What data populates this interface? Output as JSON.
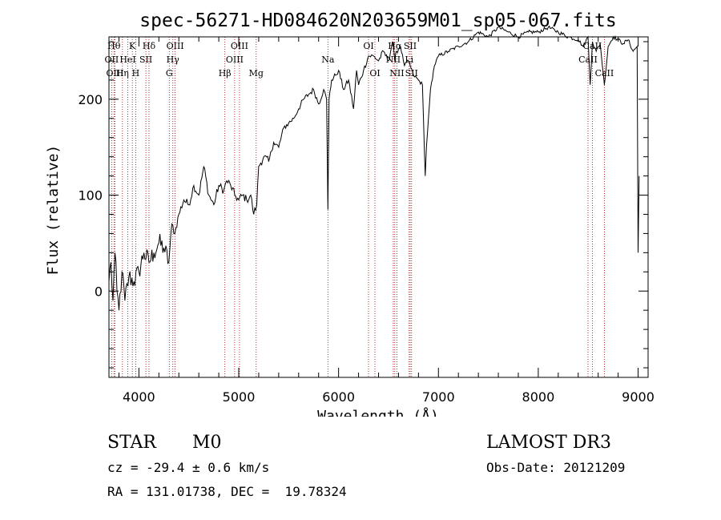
{
  "chart_data": {
    "type": "line",
    "title": "spec-56271-HD084620N203659M01_sp05-067.fits",
    "xlabel": "Wavelength (Å)",
    "ylabel": "Flux (relative)",
    "xlim": [
      3700,
      9100
    ],
    "ylim": [
      -90,
      265
    ],
    "xticks": [
      4000,
      5000,
      6000,
      7000,
      8000,
      9000
    ],
    "yticks": [
      0,
      100,
      200
    ],
    "series": [
      {
        "name": "spectrum",
        "x": [
          3700,
          3720,
          3740,
          3760,
          3780,
          3800,
          3830,
          3860,
          3900,
          3950,
          4000,
          4050,
          4100,
          4150,
          4200,
          4250,
          4300,
          4330,
          4360,
          4400,
          4450,
          4500,
          4550,
          4600,
          4650,
          4700,
          4750,
          4800,
          4850,
          4880,
          4920,
          4960,
          5000,
          5040,
          5080,
          5120,
          5150,
          5180,
          5200,
          5250,
          5300,
          5350,
          5400,
          5450,
          5500,
          5550,
          5600,
          5650,
          5700,
          5750,
          5800,
          5850,
          5880,
          5893,
          5905,
          5930,
          5970,
          6000,
          6050,
          6100,
          6150,
          6180,
          6200,
          6250,
          6300,
          6350,
          6400,
          6450,
          6500,
          6540,
          6563,
          6580,
          6620,
          6660,
          6700,
          6750,
          6800,
          6840,
          6860,
          6868,
          6880,
          6920,
          6960,
          7000,
          7100,
          7200,
          7300,
          7400,
          7500,
          7600,
          7700,
          7800,
          7900,
          8000,
          8100,
          8200,
          8300,
          8400,
          8450,
          8498,
          8520,
          8542,
          8580,
          8620,
          8662,
          8700,
          8750,
          8800,
          8850,
          8900,
          8950,
          8990,
          9000,
          9010
        ],
        "y": [
          10,
          30,
          -10,
          40,
          0,
          -20,
          20,
          -10,
          15,
          10,
          20,
          40,
          30,
          40,
          50,
          45,
          30,
          70,
          60,
          80,
          95,
          90,
          110,
          100,
          130,
          100,
          90,
          110,
          105,
          115,
          110,
          100,
          95,
          100,
          95,
          100,
          80,
          90,
          130,
          140,
          135,
          155,
          150,
          170,
          175,
          180,
          190,
          200,
          205,
          210,
          195,
          210,
          200,
          85,
          200,
          220,
          225,
          230,
          210,
          220,
          190,
          230,
          215,
          230,
          245,
          245,
          240,
          250,
          240,
          260,
          240,
          250,
          255,
          235,
          240,
          225,
          220,
          215,
          145,
          120,
          150,
          210,
          235,
          245,
          250,
          255,
          260,
          270,
          265,
          275,
          270,
          265,
          270,
          270,
          275,
          270,
          265,
          262,
          255,
          265,
          215,
          260,
          250,
          258,
          215,
          255,
          265,
          262,
          258,
          262,
          250,
          255,
          40,
          120
        ]
      }
    ],
    "lines": [
      {
        "x": 3750,
        "label": "Hθ",
        "row": 1
      },
      {
        "x": 3727,
        "label": "OII",
        "row": 2
      },
      {
        "x": 3760,
        "label": "OIII",
        "row": 3
      },
      {
        "x": 3835,
        "label": "Hη",
        "row": 3
      },
      {
        "x": 3889,
        "label": "HeI",
        "row": 2
      },
      {
        "x": 3934,
        "label": "K",
        "row": 1
      },
      {
        "x": 3968,
        "label": "H",
        "row": 3
      },
      {
        "x": 4070,
        "label": "SII",
        "row": 2
      },
      {
        "x": 4101,
        "label": "Hδ",
        "row": 1
      },
      {
        "x": 4304,
        "label": "G",
        "row": 3
      },
      {
        "x": 4340,
        "label": "Hγ",
        "row": 2
      },
      {
        "x": 4363,
        "label": "OIII",
        "row": 1
      },
      {
        "x": 4861,
        "label": "Hβ",
        "row": 3
      },
      {
        "x": 4959,
        "label": "OIII",
        "row": 2
      },
      {
        "x": 5007,
        "label": "OIII",
        "row": 1
      },
      {
        "x": 5175,
        "label": "Mg",
        "row": 3
      },
      {
        "x": 5893,
        "label": "Na",
        "row": 2
      },
      {
        "x": 6300,
        "label": "OI",
        "row": 1
      },
      {
        "x": 6364,
        "label": "OI",
        "row": 3
      },
      {
        "x": 6548,
        "label": "NII",
        "row": 2
      },
      {
        "x": 6563,
        "label": "Hα",
        "row": 1
      },
      {
        "x": 6584,
        "label": "NII",
        "row": 3
      },
      {
        "x": 6707,
        "label": "Li",
        "row": 2
      },
      {
        "x": 6717,
        "label": "SII",
        "row": 1
      },
      {
        "x": 6731,
        "label": "SII",
        "row": 3
      },
      {
        "x": 8498,
        "label": "CaII",
        "row": 2
      },
      {
        "x": 8542,
        "label": "CaII",
        "row": 1
      },
      {
        "x": 8662,
        "label": "CaII",
        "row": 3
      }
    ]
  },
  "info": {
    "class": "STAR",
    "subclass": "M0",
    "survey": "LAMOST DR3",
    "cz": "cz = -29.4 ± 0.6 km/s",
    "obs_date": "Obs-Date: 20121209",
    "radec": "RA = 131.01738, DEC =  19.78324"
  }
}
